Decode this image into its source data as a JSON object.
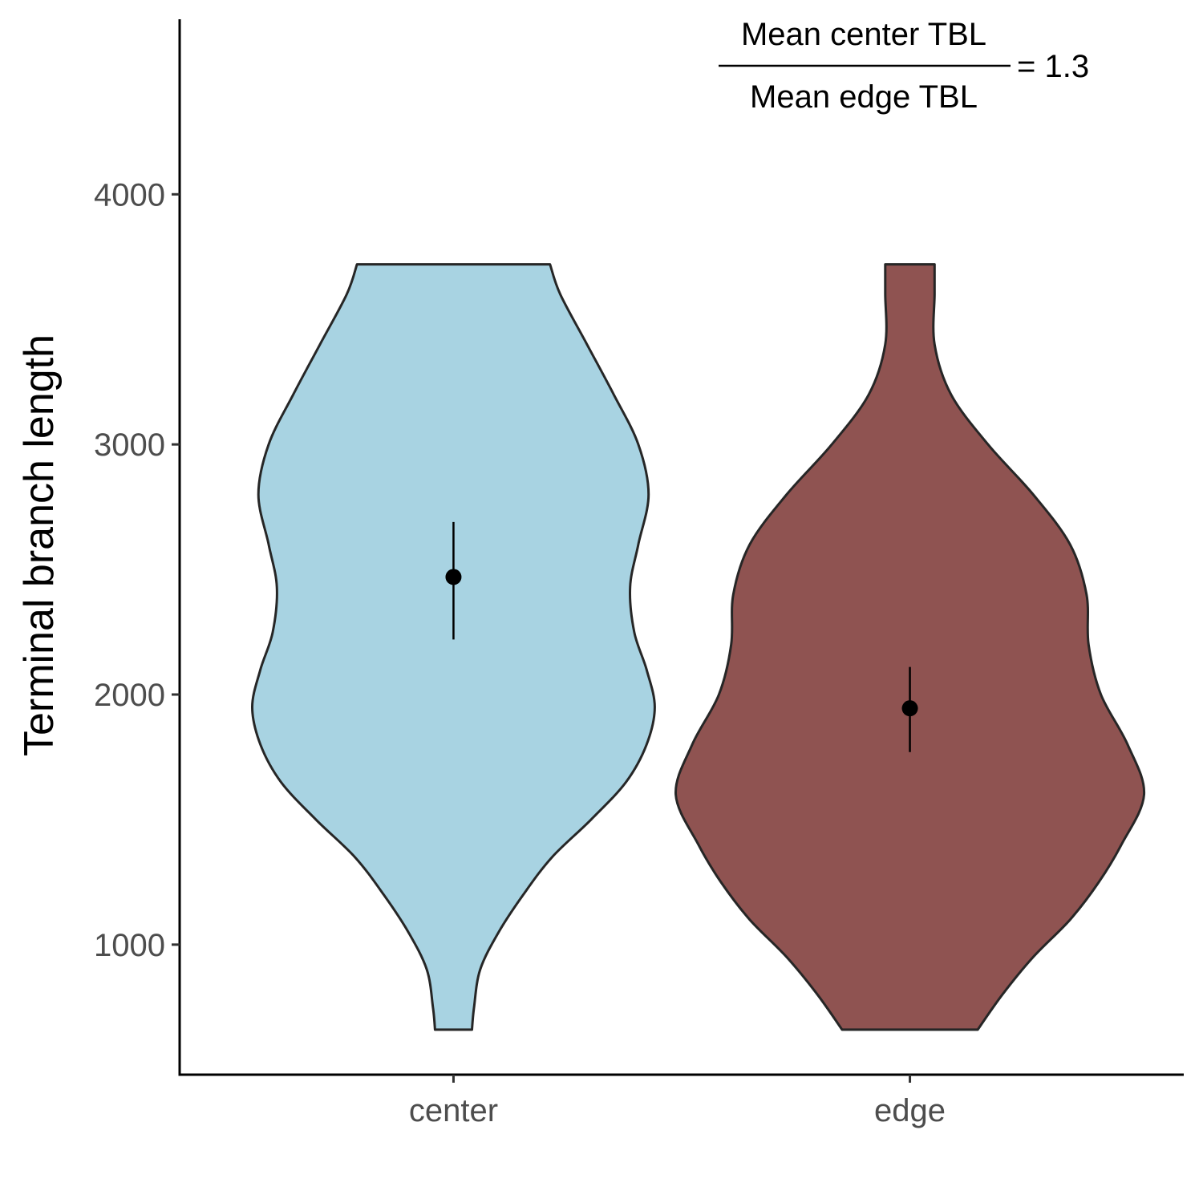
{
  "chart_data": {
    "type": "violin",
    "title": "",
    "xlabel": "",
    "ylabel": "Terminal branch length",
    "ylim": [
      480,
      4700
    ],
    "yticks": [
      1000,
      2000,
      3000,
      4000
    ],
    "categories": [
      "center",
      "edge"
    ],
    "series": [
      {
        "category": "center",
        "color": "#a8d3e2",
        "mean": 2470,
        "ci": [
          2220,
          2690
        ],
        "y_range": [
          660,
          3720
        ],
        "density_profile": [
          {
            "y": 660,
            "width": 0.09
          },
          {
            "y": 750,
            "width": 0.1
          },
          {
            "y": 900,
            "width": 0.13
          },
          {
            "y": 1050,
            "width": 0.22
          },
          {
            "y": 1200,
            "width": 0.34
          },
          {
            "y": 1350,
            "width": 0.48
          },
          {
            "y": 1500,
            "width": 0.67
          },
          {
            "y": 1650,
            "width": 0.84
          },
          {
            "y": 1800,
            "width": 0.94
          },
          {
            "y": 1950,
            "width": 0.98
          },
          {
            "y": 2100,
            "width": 0.94
          },
          {
            "y": 2250,
            "width": 0.88
          },
          {
            "y": 2430,
            "width": 0.86
          },
          {
            "y": 2600,
            "width": 0.9
          },
          {
            "y": 2800,
            "width": 0.95
          },
          {
            "y": 3000,
            "width": 0.9
          },
          {
            "y": 3200,
            "width": 0.78
          },
          {
            "y": 3400,
            "width": 0.65
          },
          {
            "y": 3600,
            "width": 0.52
          },
          {
            "y": 3720,
            "width": 0.47
          }
        ]
      },
      {
        "category": "edge",
        "color": "#8f5351",
        "mean": 1945,
        "ci": [
          1770,
          2110
        ],
        "y_range": [
          660,
          3720
        ],
        "density_profile": [
          {
            "y": 660,
            "width": 0.33
          },
          {
            "y": 800,
            "width": 0.45
          },
          {
            "y": 950,
            "width": 0.6
          },
          {
            "y": 1100,
            "width": 0.78
          },
          {
            "y": 1250,
            "width": 0.92
          },
          {
            "y": 1400,
            "width": 1.03
          },
          {
            "y": 1600,
            "width": 1.14
          },
          {
            "y": 1800,
            "width": 1.06
          },
          {
            "y": 2000,
            "width": 0.93
          },
          {
            "y": 2200,
            "width": 0.87
          },
          {
            "y": 2400,
            "width": 0.86
          },
          {
            "y": 2600,
            "width": 0.78
          },
          {
            "y": 2800,
            "width": 0.6
          },
          {
            "y": 3000,
            "width": 0.38
          },
          {
            "y": 3200,
            "width": 0.2
          },
          {
            "y": 3400,
            "width": 0.12
          },
          {
            "y": 3600,
            "width": 0.12
          },
          {
            "y": 3720,
            "width": 0.12
          }
        ]
      }
    ],
    "annotation": {
      "numerator": "Mean center TBL",
      "denominator": "Mean edge TBL",
      "equals": "= 1.3"
    },
    "grid": false,
    "legend": "none"
  }
}
